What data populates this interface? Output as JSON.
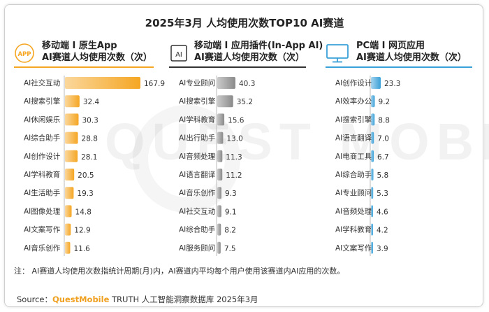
{
  "title": "2025年3月 人均使用次数TOP10 AI赛道",
  "panels": [
    {
      "header_line1": "移动端 I 原生App",
      "header_line2": "AI赛道人均使用次数（次）",
      "icon": "app-icon",
      "icon_label": "APP",
      "accent": "#f5a623"
    },
    {
      "header_line1": "移动端 I 应用插件(In-App AI)",
      "header_line2": "AI赛道人均使用次数（次）",
      "icon": "ai-chip-icon",
      "icon_label": "AI",
      "accent": "#333333"
    },
    {
      "header_line1": "PC端 I 网页应用",
      "header_line2": "AI赛道人均使用次数（次）",
      "icon": "monitor-icon",
      "icon_label": "",
      "accent": "#3aa0d8"
    }
  ],
  "chart_data": [
    {
      "type": "bar",
      "orientation": "horizontal",
      "categories": [
        "AI社交互动",
        "AI搜索引擎",
        "AI休闲娱乐",
        "AI综合助手",
        "AI创作设计",
        "AI学科教育",
        "AI生活助手",
        "AI图像处理",
        "AI文案写作",
        "AI音乐创作"
      ],
      "values": [
        167.9,
        32.4,
        30.3,
        28.8,
        28.1,
        20.5,
        19.3,
        14.8,
        12.9,
        11.6
      ],
      "value_labels": [
        "167.9",
        "32.4",
        "30.3",
        "28.8",
        "28.1",
        "20.5",
        "19.3",
        "14.8",
        "12.9",
        "11.6"
      ],
      "color": "#f5a623"
    },
    {
      "type": "bar",
      "orientation": "horizontal",
      "categories": [
        "AI专业顾问",
        "AI搜索引擎",
        "AI学科教育",
        "AI出行助手",
        "AI音频处理",
        "AI语言翻译",
        "AI音乐创作",
        "AI社交互动",
        "AI综合助手",
        "AI服务顾问"
      ],
      "values": [
        40.3,
        35.2,
        15.6,
        13.0,
        11.3,
        11.2,
        9.3,
        9.1,
        8.2,
        7.5
      ],
      "value_labels": [
        "40.3",
        "35.2",
        "15.6",
        "13.0",
        "11.3",
        "11.2",
        "9.3",
        "9.1",
        "8.2",
        "7.5"
      ],
      "color": "#8a8a8a"
    },
    {
      "type": "bar",
      "orientation": "horizontal",
      "categories": [
        "AI创作设计",
        "AI效率办公",
        "AI搜索引擎",
        "AI语言翻译",
        "AI电商工具",
        "AI综合助手",
        "AI专业顾问",
        "AI音频处理",
        "AI学科教育",
        "AI文案写作"
      ],
      "values": [
        23.3,
        9.2,
        8.8,
        7.0,
        6.7,
        5.8,
        5.3,
        4.6,
        4.2,
        3.9
      ],
      "value_labels": [
        "23.3",
        "9.2",
        "8.8",
        "7.0",
        "6.7",
        "5.8",
        "5.3",
        "4.6",
        "4.2",
        "3.9"
      ],
      "color": "#3aa0d8"
    }
  ],
  "note": "注：  AI赛道人均使用次数指统计周期(月)内，AI赛道内平均每个用户使用该赛道内AI应用的次数。",
  "source": {
    "prefix": "Source：",
    "brand": "QuestMobile",
    "suffix": " TRUTH 人工智能洞察数据库 2025年3月"
  },
  "watermark": "QUEST MOBILE"
}
